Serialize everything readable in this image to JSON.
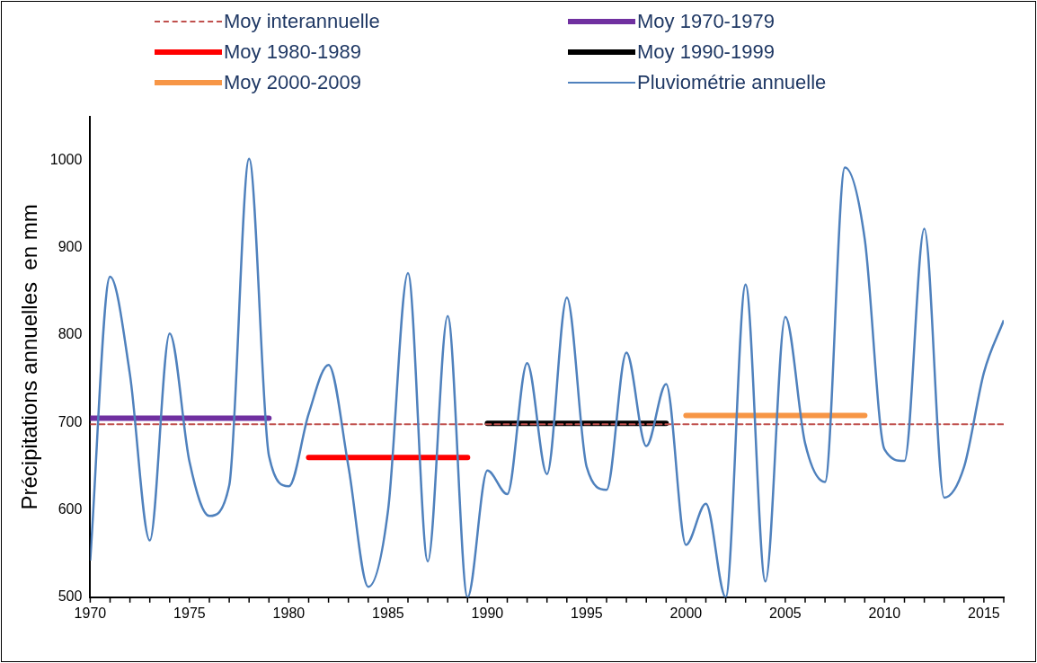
{
  "chart_data": {
    "type": "line",
    "ylabel": "Précipitations annuelles  en mm",
    "x": [
      1970,
      1971,
      1972,
      1973,
      1974,
      1975,
      1976,
      1977,
      1978,
      1979,
      1980,
      1981,
      1982,
      1983,
      1984,
      1985,
      1986,
      1987,
      1988,
      1989,
      1990,
      1991,
      1992,
      1993,
      1994,
      1995,
      1996,
      1997,
      1998,
      1999,
      2000,
      2001,
      2002,
      2003,
      2004,
      2005,
      2006,
      2007,
      2008,
      2009,
      2010,
      2011,
      2012,
      2013,
      2014,
      2015,
      2016
    ],
    "xlim": [
      1970,
      2016
    ],
    "xticks": [
      1970,
      1975,
      1980,
      1985,
      1990,
      1995,
      2000,
      2005,
      2010,
      2015
    ],
    "ylim": [
      500,
      1050
    ],
    "yticks": [
      500,
      600,
      700,
      800,
      900,
      1000
    ],
    "grid": false,
    "legend": "top",
    "marker": "none",
    "series": [
      {
        "name": "Moy interannuelle",
        "color": "#c0504d",
        "line_style": "dashed",
        "x": [
          1970,
          2016
        ],
        "values": [
          698,
          698
        ]
      },
      {
        "name": "Moy 1970-1979",
        "color": "#7030a0",
        "x": [
          1970,
          1979
        ],
        "values": [
          705,
          705
        ]
      },
      {
        "name": "Moy 1980-1989",
        "color": "#ff0000",
        "x": [
          1981,
          1989
        ],
        "values": [
          660,
          660
        ]
      },
      {
        "name": "Moy 1990-1999",
        "color": "#000000",
        "x": [
          1990,
          1999
        ],
        "values": [
          699,
          699
        ]
      },
      {
        "name": "Moy 2000-2009",
        "color": "#f79646",
        "x": [
          2000,
          2009
        ],
        "values": [
          708,
          708
        ]
      },
      {
        "name": "Pluviométrie annuelle",
        "color": "#4f81bd",
        "values": [
          542,
          867,
          755,
          565,
          802,
          655,
          593,
          628,
          1002,
          662,
          627,
          710,
          766,
          650,
          512,
          600,
          871,
          541,
          822,
          500,
          645,
          618,
          768,
          641,
          843,
          649,
          623,
          780,
          673,
          744,
          560,
          607,
          500,
          858,
          518,
          821,
          676,
          632,
          992,
          910,
          669,
          656,
          922,
          614,
          649,
          757,
          817
        ]
      }
    ]
  }
}
